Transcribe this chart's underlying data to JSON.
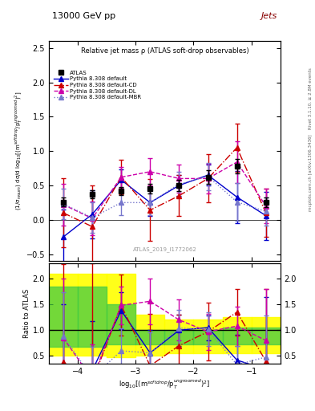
{
  "title_top": "13000 GeV pp",
  "title_right": "Jets",
  "plot_title": "Relative jet mass ρ (ATLAS soft-drop observables)",
  "watermark": "ATLAS_2019_I1772062",
  "ylabel_main": "(1/σ$_{resum}$) dσ/d log$_{10}$[(m$^{soft drop}$/p$_T^{ungroomed}$)$^2$]",
  "ylabel_ratio": "Ratio to ATLAS",
  "xlabel": "log$_{10}$[(m$^{soft drop}$/p$_T^{ungroomed}$$)^2$]",
  "right_label1": "Rivet 3.1.10, ≥ 2.8M events",
  "right_label2": "mcplots.cern.ch [arXiv:1306.3436]",
  "xlim": [
    -4.5,
    -0.5
  ],
  "ylim_main": [
    -0.6,
    2.6
  ],
  "ylim_ratio": [
    0.35,
    2.3
  ],
  "x_ticks": [
    -4,
    -3,
    -2,
    -1
  ],
  "atlas_x": [
    -4.25,
    -3.75,
    -3.25,
    -2.75,
    -2.25,
    -1.75,
    -1.25,
    -0.75
  ],
  "atlas_y": [
    0.26,
    0.37,
    0.42,
    0.45,
    0.5,
    0.62,
    0.78,
    0.25
  ],
  "atlas_yerr": [
    0.07,
    0.06,
    0.06,
    0.07,
    0.08,
    0.1,
    0.1,
    0.07
  ],
  "py_def_x": [
    -4.25,
    -3.75,
    -3.25,
    -2.75,
    -2.25,
    -1.75,
    -1.25,
    -0.75
  ],
  "py_def_y": [
    -0.25,
    0.08,
    0.58,
    0.25,
    0.5,
    0.65,
    0.33,
    0.06
  ],
  "py_def_yerr": [
    0.4,
    0.35,
    0.15,
    0.2,
    0.15,
    0.15,
    0.38,
    0.35
  ],
  "py_cd_x": [
    -4.25,
    -3.75,
    -3.25,
    -2.75,
    -2.25,
    -1.75,
    -1.25,
    -0.75
  ],
  "py_cd_y": [
    0.1,
    -0.1,
    0.62,
    0.14,
    0.35,
    0.6,
    1.05,
    0.1
  ],
  "py_cd_yerr": [
    0.5,
    0.6,
    0.25,
    0.45,
    0.3,
    0.35,
    0.35,
    0.35
  ],
  "py_dl_x": [
    -4.25,
    -3.75,
    -3.25,
    -2.75,
    -2.25,
    -1.75,
    -1.25,
    -0.75
  ],
  "py_dl_y": [
    0.22,
    0.02,
    0.62,
    0.7,
    0.6,
    0.6,
    0.84,
    0.2
  ],
  "py_dl_yerr": [
    0.3,
    0.25,
    0.15,
    0.2,
    0.2,
    0.22,
    0.3,
    0.25
  ],
  "py_mbr_x": [
    -4.25,
    -3.75,
    -3.25,
    -2.75,
    -2.25,
    -1.75,
    -1.25,
    -0.75
  ],
  "py_mbr_y": [
    0.23,
    0.03,
    0.25,
    0.25,
    0.52,
    0.63,
    0.26,
    0.12
  ],
  "py_mbr_yerr": [
    0.22,
    0.22,
    0.18,
    0.18,
    0.18,
    0.2,
    0.28,
    0.2
  ],
  "ratio_def_y": [
    0.0,
    0.22,
    1.38,
    0.56,
    1.0,
    1.05,
    0.42,
    0.24
  ],
  "ratio_def_yerr": [
    1.5,
    0.95,
    0.36,
    0.45,
    0.3,
    0.24,
    0.49,
    1.4
  ],
  "ratio_cd_y": [
    0.38,
    0.0,
    1.48,
    0.31,
    0.7,
    0.97,
    1.35,
    0.4
  ],
  "ratio_cd_yerr": [
    1.9,
    2.3,
    0.59,
    1.0,
    0.6,
    0.56,
    0.45,
    1.4
  ],
  "ratio_dl_y": [
    0.85,
    0.05,
    1.48,
    1.56,
    1.2,
    0.97,
    1.08,
    0.8
  ],
  "ratio_dl_yerr": [
    1.15,
    0.68,
    0.36,
    0.44,
    0.4,
    0.35,
    0.38,
    1.0
  ],
  "ratio_mbr_y": [
    0.88,
    0.08,
    0.6,
    0.56,
    1.04,
    1.02,
    0.33,
    0.48
  ],
  "ratio_mbr_yerr": [
    0.85,
    0.6,
    0.43,
    0.4,
    0.36,
    0.32,
    0.36,
    0.8
  ],
  "band_x_edges": [
    -4.5,
    -4.0,
    -3.5,
    -3.0,
    -2.5,
    -2.0,
    -1.5,
    -1.0,
    -0.5
  ],
  "band_yellow_lo": [
    0.5,
    0.5,
    0.48,
    0.5,
    0.55,
    0.55,
    0.55,
    0.55
  ],
  "band_yellow_hi": [
    2.1,
    2.1,
    2.1,
    1.3,
    1.2,
    1.2,
    1.25,
    1.25
  ],
  "band_green_lo": [
    0.68,
    0.68,
    0.72,
    0.72,
    0.72,
    0.72,
    0.72,
    0.72
  ],
  "band_green_hi": [
    1.85,
    1.85,
    1.5,
    1.0,
    1.0,
    1.0,
    1.05,
    1.05
  ],
  "color_atlas": "#000000",
  "color_default": "#0000cc",
  "color_cd": "#cc0000",
  "color_dl": "#cc00aa",
  "color_mbr": "#7777cc",
  "marker_size": 4,
  "lw": 1.0,
  "cap": 2
}
